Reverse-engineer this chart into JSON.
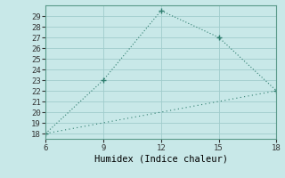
{
  "x": [
    6,
    9,
    12,
    15,
    18
  ],
  "y_line1": [
    18,
    23,
    29.5,
    27,
    22
  ],
  "y_line2": [
    18,
    19,
    20,
    21,
    22
  ],
  "xlabel": "Humidex (Indice chaleur)",
  "xlim": [
    6,
    18
  ],
  "ylim": [
    17.5,
    30
  ],
  "yticks": [
    18,
    19,
    20,
    21,
    22,
    23,
    24,
    25,
    26,
    27,
    28,
    29
  ],
  "xticks": [
    6,
    9,
    12,
    15,
    18
  ],
  "line_color": "#2e7d6e",
  "bg_color": "#c8e8e8",
  "grid_color": "#a0cccc",
  "marker": "+"
}
